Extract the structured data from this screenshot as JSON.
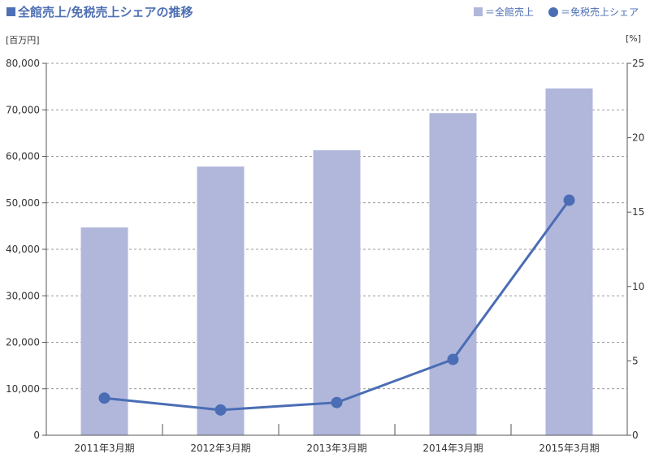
{
  "title": "全館売上/免税売上シェアの推移",
  "legend": {
    "bar_label": "＝全館売上",
    "line_label": "＝免税売上シェア"
  },
  "left_unit": "[百万円]",
  "right_unit": "[%]",
  "colors": {
    "bar": "#b1b7db",
    "line": "#4a6db5",
    "title": "#4e6fb3"
  },
  "chart_data": {
    "type": "bar",
    "title": "全館売上/免税売上シェアの推移",
    "categories": [
      "2011年3月期",
      "2012年3月期",
      "2013年3月期",
      "2014年3月期",
      "2015年3月期"
    ],
    "series": [
      {
        "name": "全館売上",
        "type": "bar",
        "axis": "left",
        "values": [
          44700,
          57800,
          61300,
          69300,
          74600
        ]
      },
      {
        "name": "免税売上シェア",
        "type": "line",
        "axis": "right",
        "values": [
          2.5,
          1.7,
          2.2,
          5.1,
          15.8
        ]
      }
    ],
    "ylabel": "[百万円]",
    "y2label": "[%]",
    "ylim": [
      0,
      80000
    ],
    "y2lim": [
      0,
      25
    ],
    "yticks": [
      "0",
      "10,000",
      "20,000",
      "30,000",
      "40,000",
      "50,000",
      "60,000",
      "70,000",
      "80,000"
    ],
    "y2ticks": [
      "0",
      "5",
      "10",
      "15",
      "20",
      "25"
    ],
    "grid": true
  }
}
